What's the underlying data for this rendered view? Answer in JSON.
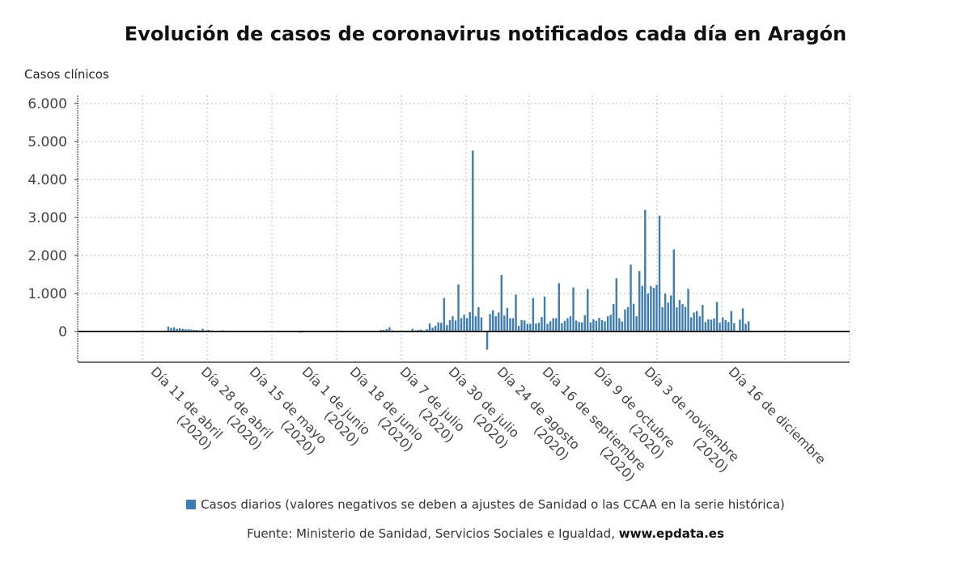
{
  "chart_data": {
    "type": "bar",
    "title": "Evolución de casos de coronavirus notificados cada día en Aragón",
    "ylabel": "Casos clínicos",
    "xlabel": "",
    "ylim": [
      -800,
      6200
    ],
    "yticks": [
      0,
      1000,
      2000,
      3000,
      4000,
      5000,
      6000
    ],
    "ytick_labels": [
      "0",
      "1.000",
      "2.000",
      "3.000",
      "4.000",
      "5.000",
      "6.000"
    ],
    "xtick_labels": [
      [
        "Día 11 de abril",
        "(2020)"
      ],
      [
        "Día 28 de abril",
        "(2020)"
      ],
      [
        "Día 15 de mayo",
        "(2020)"
      ],
      [
        "Día 1 de junio",
        "(2020)"
      ],
      [
        "Día 18 de junio",
        "(2020)"
      ],
      [
        "Día 7 de julio",
        "(2020)"
      ],
      [
        "Día 30 de julio",
        "(2020)"
      ],
      [
        "Día 24 de agosto",
        "(2020)"
      ],
      [
        "Día 16 de septiembre",
        "(2020)"
      ],
      [
        "Día 9 de octubre",
        "(2020)"
      ],
      [
        "Día 3 de noviembre",
        "(2020)"
      ],
      [
        "Día 16 de diciembre",
        ""
      ]
    ],
    "grid": true,
    "legend_position": "bottom",
    "series": [
      {
        "name": "Casos diarios (valores negativos se deben a ajustes de Sanidad o las CCAA en la serie histórica)",
        "color": "#3e7cb1",
        "values": [
          130,
          90,
          110,
          70,
          80,
          70,
          60,
          60,
          50,
          40,
          40,
          30,
          70,
          30,
          40,
          25,
          20,
          15,
          20,
          30,
          15,
          10,
          8,
          12,
          10,
          6,
          8,
          10,
          5,
          8,
          6,
          10,
          12,
          8,
          6,
          5,
          8,
          10,
          6,
          5,
          8,
          10,
          6,
          8,
          12,
          10,
          -30,
          8,
          6,
          5,
          10,
          6,
          8,
          5,
          6,
          10,
          8,
          5,
          6,
          8,
          10,
          6,
          5,
          8,
          6,
          10,
          12,
          8,
          6,
          10,
          8,
          12,
          10,
          20,
          40,
          40,
          60,
          110,
          30,
          20,
          10,
          10,
          5,
          0,
          10,
          70,
          30,
          40,
          50,
          20,
          60,
          210,
          100,
          150,
          240,
          230,
          880,
          170,
          300,
          400,
          290,
          1240,
          350,
          440,
          350,
          510,
          4760,
          400,
          640,
          370,
          0,
          -480,
          460,
          560,
          400,
          500,
          1490,
          420,
          620,
          350,
          350,
          970,
          150,
          300,
          290,
          200,
          200,
          880,
          210,
          230,
          380,
          920,
          200,
          270,
          350,
          350,
          1270,
          220,
          280,
          350,
          400,
          1160,
          290,
          250,
          240,
          430,
          1120,
          240,
          320,
          280,
          360,
          300,
          270,
          400,
          440,
          720,
          1400,
          350,
          260,
          580,
          640,
          1760,
          730,
          400,
          1590,
          1200,
          3200,
          1000,
          1190,
          1150,
          1230,
          3050,
          640,
          1000,
          760,
          950,
          2160,
          640,
          830,
          720,
          650,
          1120,
          370,
          500,
          540,
          400,
          700,
          250,
          320,
          310,
          340,
          780,
          230,
          370,
          300,
          250,
          540,
          220,
          0,
          310,
          610,
          200,
          270
        ]
      }
    ]
  },
  "legend": {
    "label": "Casos diarios (valores negativos se deben a ajustes de Sanidad o las CCAA en la serie histórica)"
  },
  "source": {
    "prefix": "Fuente: Ministerio de Sanidad, Servicios Sociales e Igualdad, ",
    "site": "www.epdata.es"
  }
}
